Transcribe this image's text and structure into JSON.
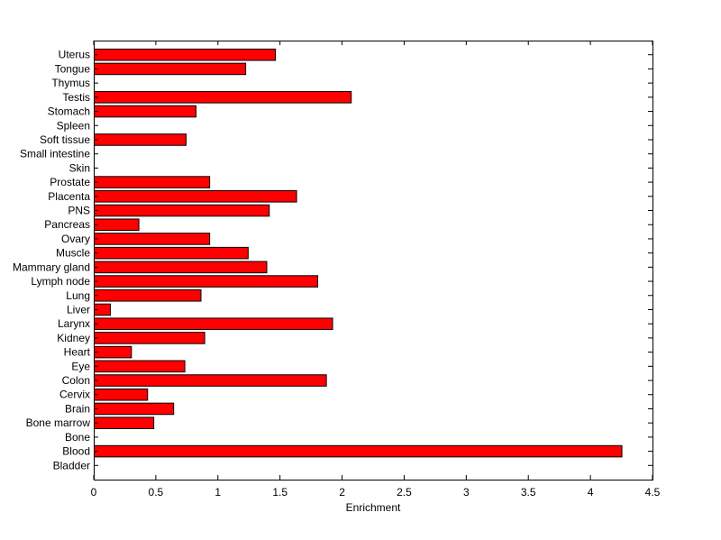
{
  "chart_data": {
    "type": "bar",
    "orientation": "horizontal",
    "title": "",
    "xlabel": "Enrichment",
    "ylabel": "",
    "xlim": [
      0,
      4.5
    ],
    "xticks": [
      0,
      0.5,
      1,
      1.5,
      2,
      2.5,
      3,
      3.5,
      4,
      4.5
    ],
    "xtick_labels": [
      "0",
      "0.5",
      "1",
      "1.5",
      "2",
      "2.5",
      "3",
      "3.5",
      "4",
      "4.5"
    ],
    "grid": false,
    "legend": "none",
    "bar_color": "#ff0000",
    "categories": [
      "Bladder",
      "Blood",
      "Bone",
      "Bone marrow",
      "Brain",
      "Cervix",
      "Colon",
      "Eye",
      "Heart",
      "Kidney",
      "Larynx",
      "Liver",
      "Lung",
      "Lymph node",
      "Mammary gland",
      "Muscle",
      "Ovary",
      "Pancreas",
      "PNS",
      "Placenta",
      "Prostate",
      "Skin",
      "Small intestine",
      "Soft tissue",
      "Spleen",
      "Stomach",
      "Testis",
      "Thymus",
      "Tongue",
      "Uterus"
    ],
    "values": [
      0,
      4.25,
      0,
      0.48,
      0.64,
      0.43,
      1.87,
      0.73,
      0.3,
      0.89,
      1.92,
      0.13,
      0.86,
      1.8,
      1.39,
      1.24,
      0.93,
      0.36,
      1.41,
      1.63,
      0.93,
      0,
      0,
      0.74,
      0,
      0.82,
      2.07,
      0,
      1.22,
      1.46
    ]
  }
}
